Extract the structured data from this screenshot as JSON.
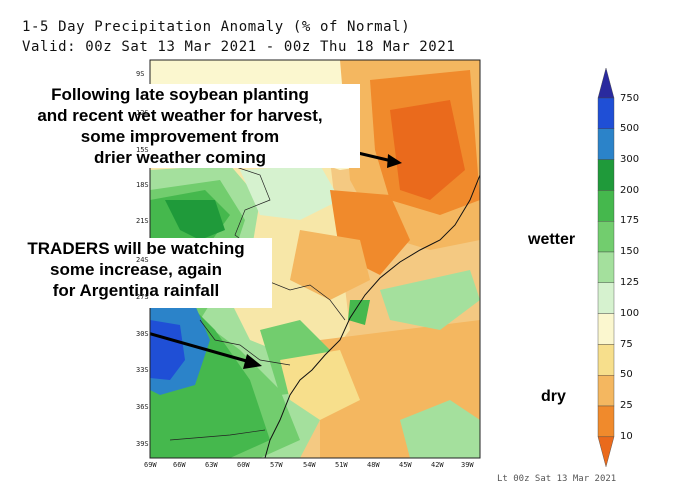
{
  "title": {
    "line1": "1-5 Day Precipitation Anomaly (% of Normal)",
    "line2": "Valid: 00z Sat 13 Mar 2021 - 00z Thu 18 Mar 2021"
  },
  "annotations": {
    "brazil": [
      "Following late soybean planting",
      "and recent wet weather for harvest,",
      "some improvement from",
      "drier weather coming"
    ],
    "argentina": [
      "TRADERS will be watching",
      "some increase, again",
      "for Argentina rainfall"
    ]
  },
  "legend": {
    "wetter": "wetter",
    "dry": "dry",
    "levels": [
      "750",
      "500",
      "300",
      "200",
      "175",
      "150",
      "125",
      "100",
      "75",
      "50",
      "25",
      "10"
    ],
    "colors": [
      "#2a2a9e",
      "#1f4fd6",
      "#2b83c9",
      "#1f9a3a",
      "#45b84d",
      "#72cd6e",
      "#a4e09d",
      "#d6f2cf",
      "#fbf7cf",
      "#f7df8c",
      "#f4b760",
      "#f08a2c",
      "#ea6a1c"
    ]
  },
  "map": {
    "lat_labels": [
      "9S",
      "12S",
      "15S",
      "18S",
      "21S",
      "24S",
      "27S",
      "30S",
      "33S",
      "36S",
      "39S"
    ],
    "lon_labels": [
      "69W",
      "66W",
      "63W",
      "60W",
      "57W",
      "54W",
      "51W",
      "48W",
      "45W",
      "42W",
      "39W"
    ]
  },
  "footer": "Lt 00z Sat 13 Mar 2021"
}
